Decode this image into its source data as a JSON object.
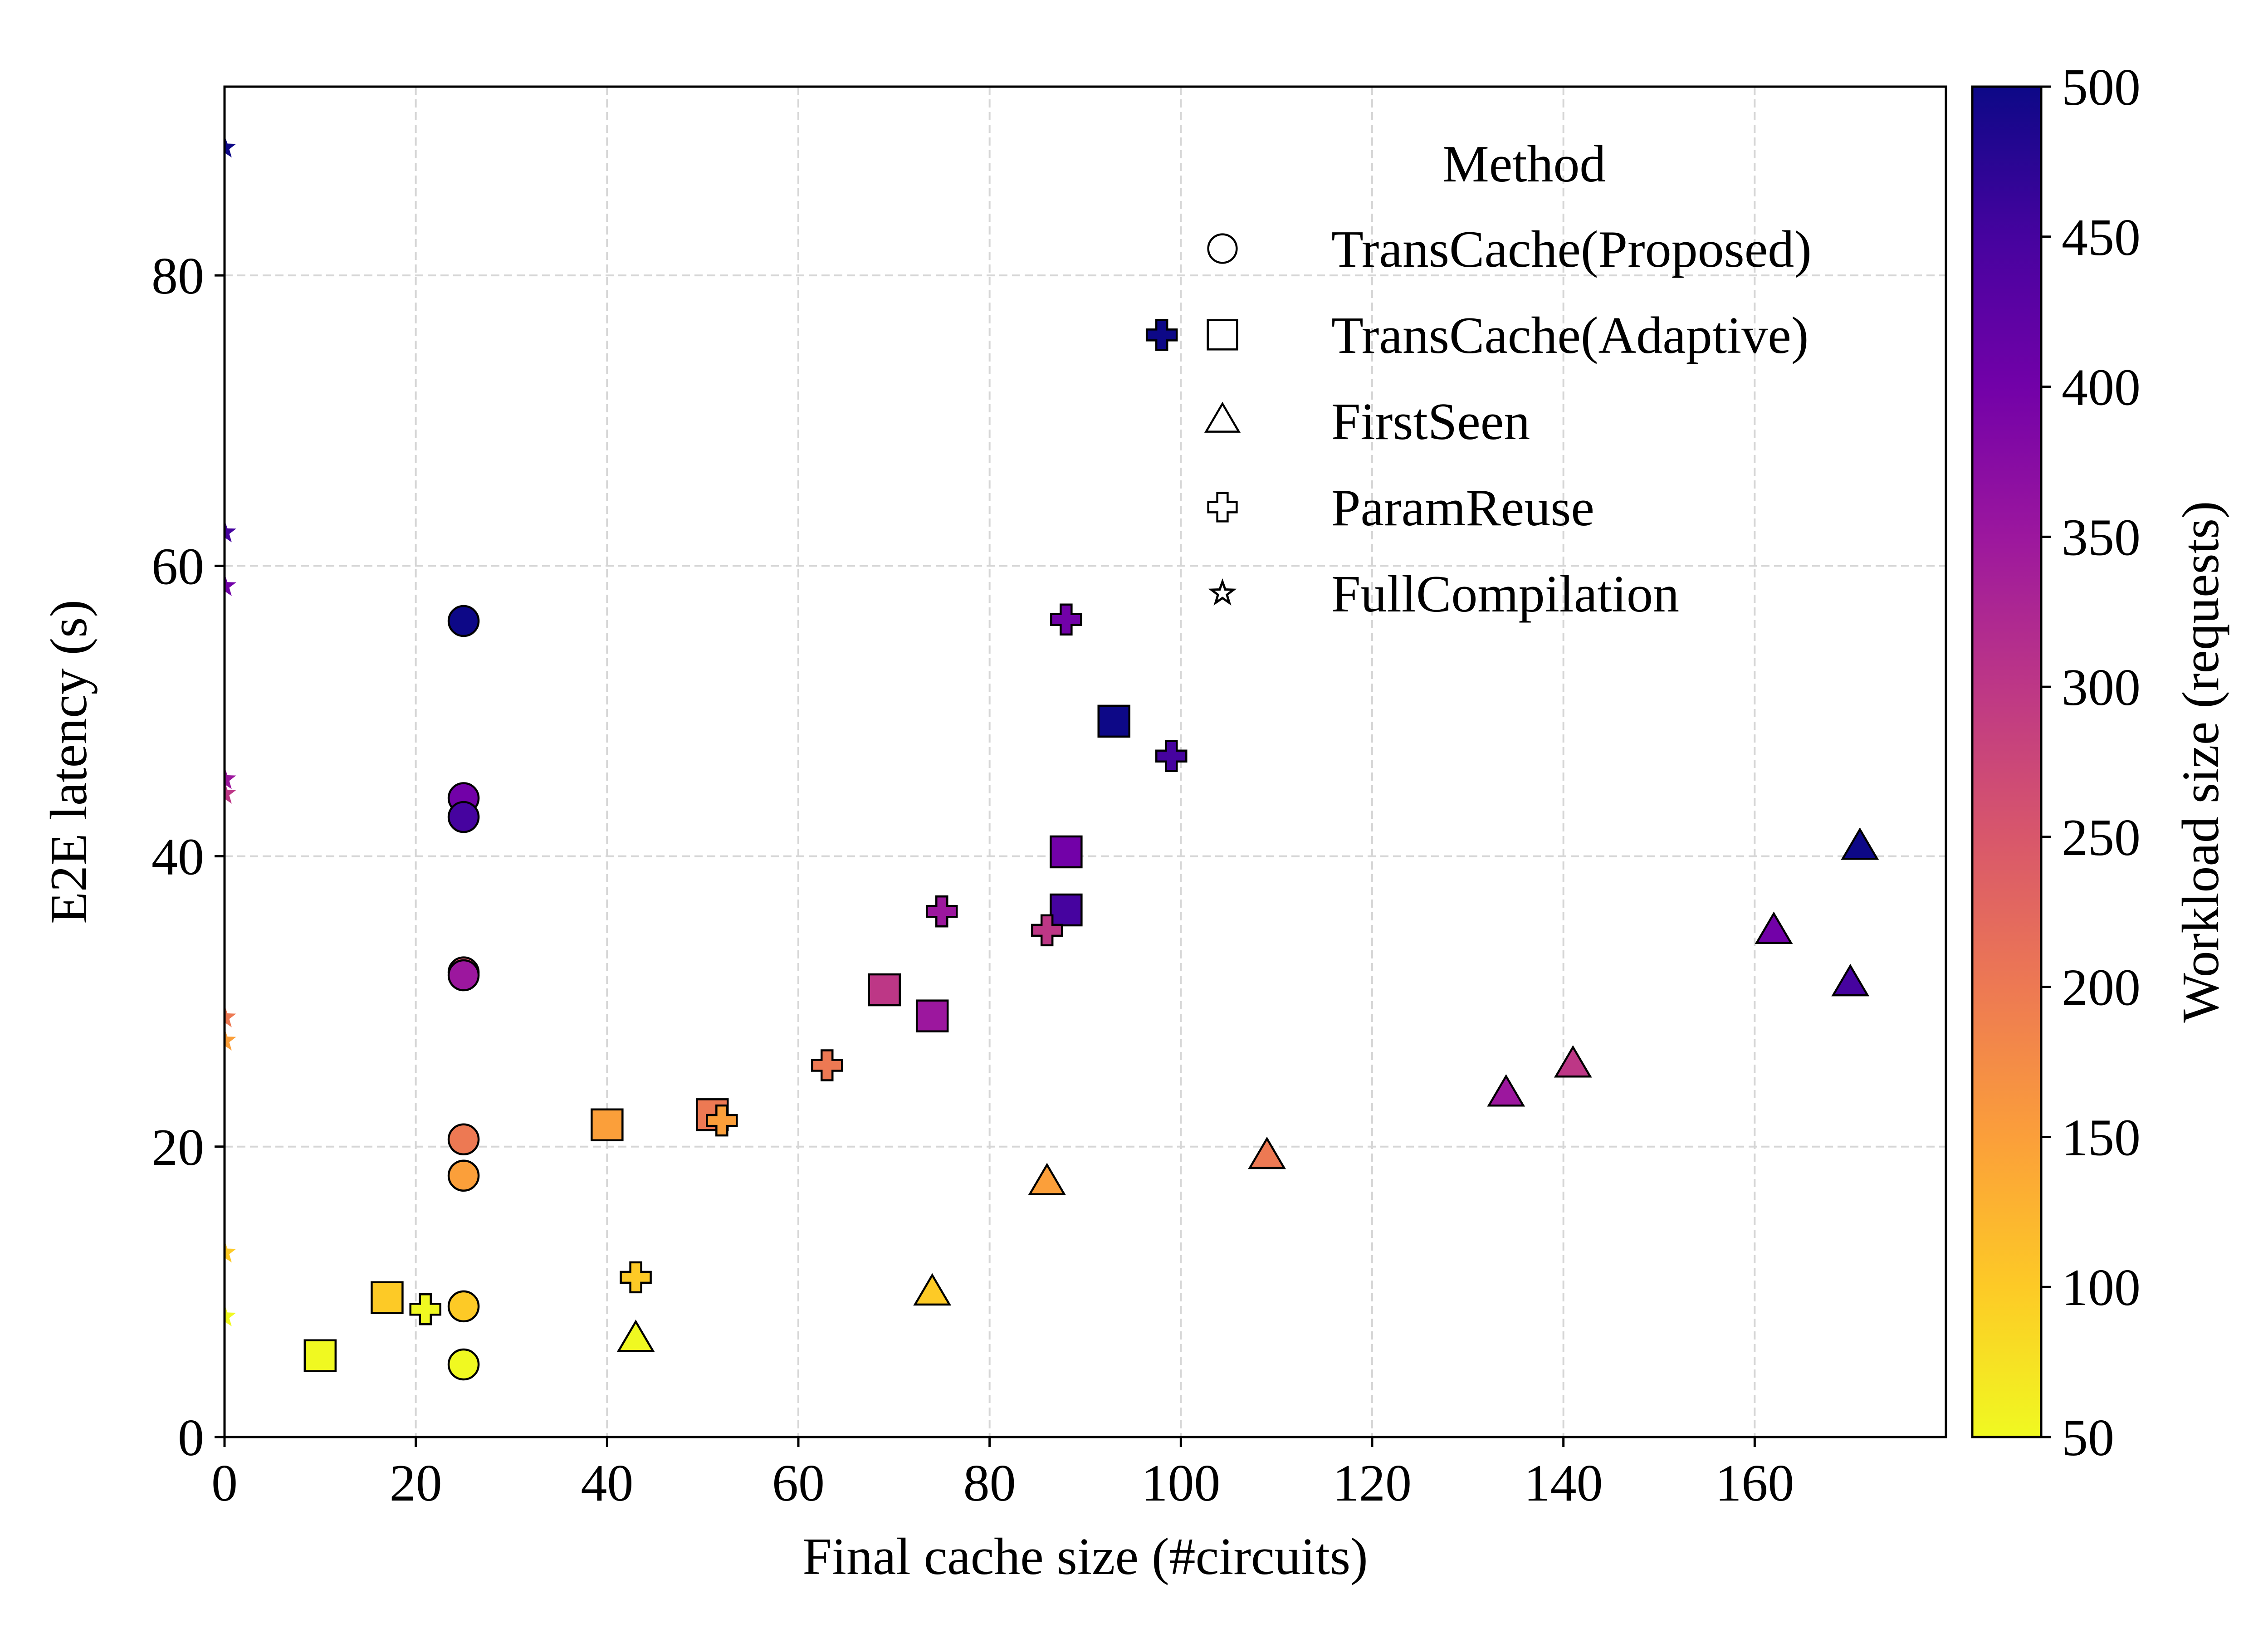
{
  "chart_data": {
    "type": "scatter",
    "title": "",
    "xlabel": "Final cache size (#circuits)",
    "ylabel": "E2E latency (s)",
    "xlim": [
      0,
      180
    ],
    "ylim": [
      0,
      93
    ],
    "xticks": [
      0,
      20,
      40,
      60,
      80,
      100,
      120,
      140,
      160
    ],
    "yticks": [
      0,
      20,
      40,
      60,
      80
    ],
    "grid": true,
    "legend": {
      "title": "Method",
      "placement": "top-right",
      "entries": [
        {
          "label": "TransCache(Proposed)",
          "marker": "circle"
        },
        {
          "label": "TransCache(Adaptive)",
          "marker": "square"
        },
        {
          "label": "FirstSeen",
          "marker": "triangle"
        },
        {
          "label": "ParamReuse",
          "marker": "plus"
        },
        {
          "label": "FullCompilation",
          "marker": "star"
        }
      ]
    },
    "colorbar": {
      "label": "Workload size (requests)",
      "range": [
        50,
        500
      ],
      "ticks": [
        50,
        100,
        150,
        200,
        250,
        300,
        350,
        400,
        450,
        500
      ],
      "colormap": "plasma_r",
      "stops": [
        "#f0f921",
        "#fdca26",
        "#fb9f3a",
        "#ed7953",
        "#d8576b",
        "#bd3786",
        "#9c179e",
        "#7201a8",
        "#46039f",
        "#0d0887"
      ]
    },
    "series": [
      {
        "name": "TransCache(Proposed)",
        "marker": "circle",
        "points": [
          {
            "x": 25,
            "y": 5.0,
            "c": 50
          },
          {
            "x": 25,
            "y": 9.0,
            "c": 100
          },
          {
            "x": 25,
            "y": 18.0,
            "c": 150
          },
          {
            "x": 25,
            "y": 20.5,
            "c": 200
          },
          {
            "x": 25,
            "y": 32.0,
            "c": 250
          },
          {
            "x": 25,
            "y": 31.8,
            "c": 350
          },
          {
            "x": 25,
            "y": 44.0,
            "c": 400
          },
          {
            "x": 25,
            "y": 42.7,
            "c": 450
          },
          {
            "x": 25,
            "y": 56.2,
            "c": 500
          }
        ]
      },
      {
        "name": "TransCache(Adaptive)",
        "marker": "square",
        "points": [
          {
            "x": 10,
            "y": 5.6,
            "c": 50
          },
          {
            "x": 17,
            "y": 9.6,
            "c": 100
          },
          {
            "x": 40,
            "y": 21.5,
            "c": 150
          },
          {
            "x": 51,
            "y": 22.2,
            "c": 200
          },
          {
            "x": 69,
            "y": 30.8,
            "c": 300
          },
          {
            "x": 74,
            "y": 29.0,
            "c": 350
          },
          {
            "x": 88,
            "y": 40.3,
            "c": 400
          },
          {
            "x": 88,
            "y": 36.3,
            "c": 450
          },
          {
            "x": 93,
            "y": 49.3,
            "c": 500
          }
        ]
      },
      {
        "name": "FirstSeen",
        "marker": "triangle",
        "points": [
          {
            "x": 43,
            "y": 6.7,
            "c": 50
          },
          {
            "x": 74,
            "y": 9.9,
            "c": 100
          },
          {
            "x": 86,
            "y": 17.5,
            "c": 150
          },
          {
            "x": 109,
            "y": 19.3,
            "c": 200
          },
          {
            "x": 134,
            "y": 23.6,
            "c": 350
          },
          {
            "x": 141,
            "y": 25.6,
            "c": 300
          },
          {
            "x": 162,
            "y": 34.8,
            "c": 400
          },
          {
            "x": 170,
            "y": 31.2,
            "c": 450
          },
          {
            "x": 171,
            "y": 40.6,
            "c": 500
          }
        ]
      },
      {
        "name": "ParamReuse",
        "marker": "plus",
        "points": [
          {
            "x": 21,
            "y": 8.8,
            "c": 50
          },
          {
            "x": 43,
            "y": 11.0,
            "c": 100
          },
          {
            "x": 52,
            "y": 21.8,
            "c": 150
          },
          {
            "x": 63,
            "y": 25.6,
            "c": 200
          },
          {
            "x": 75,
            "y": 36.2,
            "c": 350
          },
          {
            "x": 86,
            "y": 34.9,
            "c": 300
          },
          {
            "x": 88,
            "y": 56.3,
            "c": 400
          },
          {
            "x": 99,
            "y": 46.9,
            "c": 450
          },
          {
            "x": 98,
            "y": 75.9,
            "c": 500
          }
        ]
      },
      {
        "name": "FullCompilation",
        "marker": "star",
        "points": [
          {
            "x": 0,
            "y": 8.3,
            "c": 50
          },
          {
            "x": 0,
            "y": 12.7,
            "c": 100
          },
          {
            "x": 0,
            "y": 27.3,
            "c": 150
          },
          {
            "x": 0,
            "y": 28.9,
            "c": 200
          },
          {
            "x": 0,
            "y": 44.3,
            "c": 300
          },
          {
            "x": 0,
            "y": 45.3,
            "c": 350
          },
          {
            "x": 0,
            "y": 58.6,
            "c": 400
          },
          {
            "x": 0,
            "y": 62.3,
            "c": 450
          },
          {
            "x": 0,
            "y": 88.8,
            "c": 500
          }
        ]
      }
    ]
  }
}
